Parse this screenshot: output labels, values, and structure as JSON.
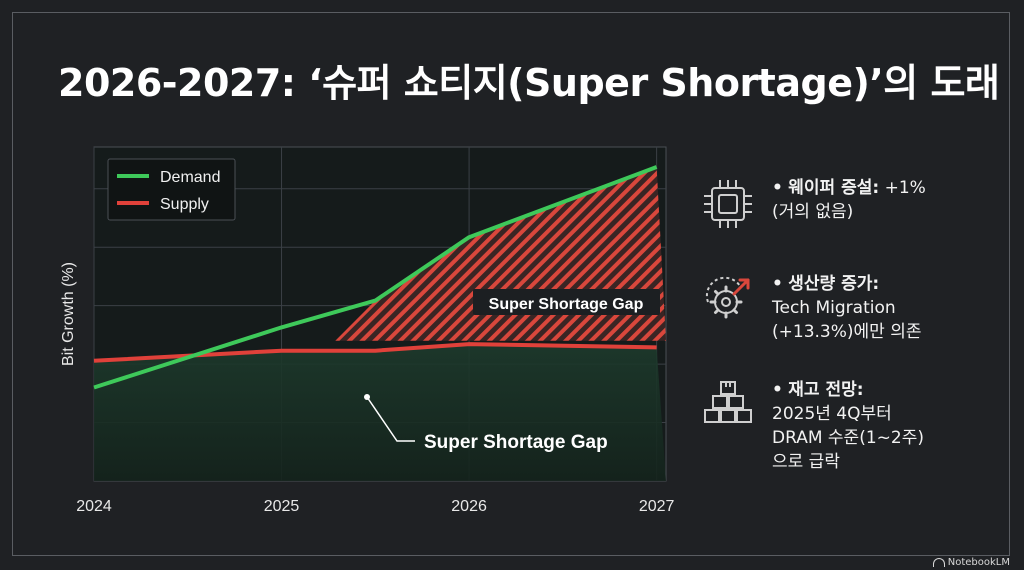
{
  "title": "2026-2027: ‘슈퍼 쇼티지(Super Shortage)’의 도래",
  "chart_data": {
    "type": "line",
    "x": [
      2024,
      2025,
      2025.5,
      2026,
      2027
    ],
    "xticks": [
      "2024",
      "2025",
      "2026",
      "2027"
    ],
    "xlim": [
      2024,
      2027.05
    ],
    "ylabel": "Bit Growth (%)",
    "ylim": [
      0,
      100
    ],
    "grid": true,
    "legend_position": "top-left",
    "series": [
      {
        "name": "Demand",
        "color": "#3ec95a",
        "values": [
          28,
          46,
          54,
          73,
          94
        ]
      },
      {
        "name": "Supply",
        "color": "#e0413a",
        "values": [
          36,
          39,
          39,
          41,
          40
        ]
      }
    ],
    "annotations": [
      {
        "label": "Super Shortage Gap",
        "position": "inside-gap"
      },
      {
        "label": "Super Shortage Gap",
        "position": "below-supply"
      }
    ]
  },
  "sidebar": {
    "items": [
      {
        "icon": "chip-icon",
        "bullet": "•",
        "head": "웨이퍼 증설:",
        "inline": " +1%",
        "lines": [
          "(거의 없음)"
        ]
      },
      {
        "icon": "gear-arrow-icon",
        "bullet": "•",
        "head": "생산량 증가:",
        "inline": "",
        "lines": [
          "Tech Migration",
          "(+13.3%)에만 의존"
        ]
      },
      {
        "icon": "boxes-icon",
        "bullet": "•",
        "head": "재고 전망:",
        "inline": "",
        "lines": [
          "2025년 4Q부터",
          "DRAM 수준(1~2주)",
          "으로 급락"
        ]
      }
    ]
  },
  "watermark": "NotebookLM"
}
